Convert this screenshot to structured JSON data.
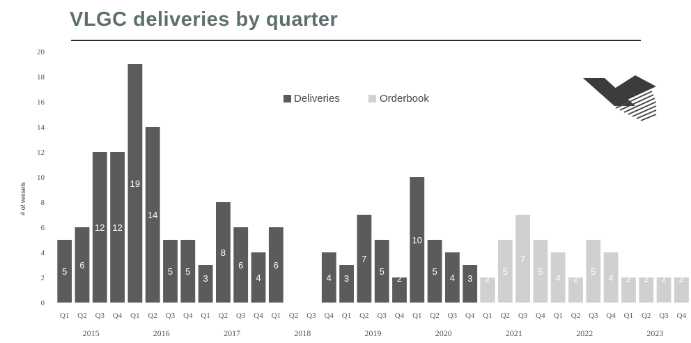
{
  "title": "VLGC deliveries by quarter",
  "colors": {
    "deliveries": "#5b5b5b",
    "orderbook": "#d0d0d0",
    "title": "#5e6e6e",
    "logo": "#3c3c3c"
  },
  "logo": "company-logo-icon",
  "chart_data": {
    "type": "bar",
    "title": "VLGC deliveries by quarter",
    "xlabel": "",
    "ylabel": "# of vessels",
    "ylim": [
      0,
      20
    ],
    "yticks": [
      0,
      2,
      4,
      6,
      8,
      10,
      12,
      14,
      16,
      18,
      20
    ],
    "grid": false,
    "legend": "top-center",
    "years": [
      "2015",
      "2016",
      "2017",
      "2018",
      "2019",
      "2020",
      "2021",
      "2022",
      "2023"
    ],
    "categories": [
      "Q1",
      "Q2",
      "Q3",
      "Q4",
      "Q1",
      "Q2",
      "Q3",
      "Q4",
      "Q1",
      "Q2",
      "Q3",
      "Q4",
      "Q1",
      "Q2",
      "Q3",
      "Q4",
      "Q1",
      "Q2",
      "Q3",
      "Q4",
      "Q1",
      "Q2",
      "Q3",
      "Q4",
      "Q1",
      "Q2",
      "Q3",
      "Q4",
      "Q1",
      "Q2",
      "Q3",
      "Q4",
      "Q1",
      "Q2",
      "Q3",
      "Q4"
    ],
    "series": [
      {
        "name": "Deliveries",
        "values": [
          5,
          6,
          12,
          12,
          19,
          14,
          5,
          5,
          3,
          8,
          6,
          4,
          6,
          0,
          0,
          4,
          3,
          7,
          5,
          2,
          10,
          5,
          4,
          3,
          2,
          0,
          0,
          0,
          0,
          0,
          0,
          0,
          0,
          0,
          0,
          0
        ]
      },
      {
        "name": "Orderbook",
        "values": [
          0,
          0,
          0,
          0,
          0,
          0,
          0,
          0,
          0,
          0,
          0,
          0,
          0,
          0,
          0,
          0,
          0,
          0,
          0,
          0,
          0,
          0,
          0,
          0,
          2,
          5,
          7,
          5,
          4,
          2,
          5,
          4,
          2,
          2,
          2,
          2
        ]
      }
    ]
  }
}
